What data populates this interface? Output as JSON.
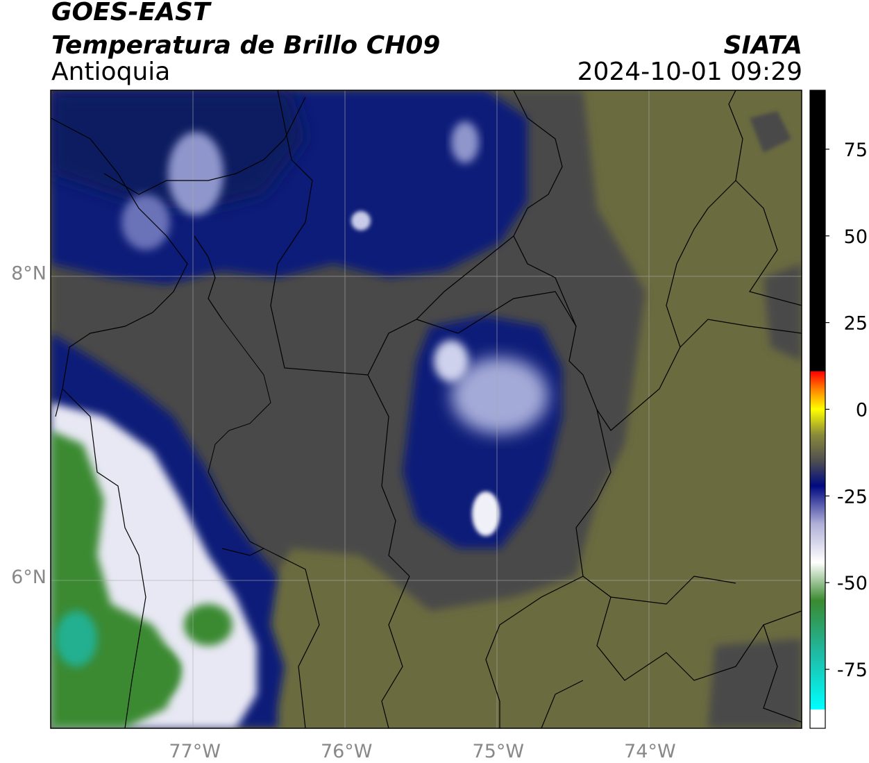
{
  "header": {
    "line1": "GOES-EAST",
    "line2": "Temperatura de Brillo CH09",
    "line3": "Antioquia",
    "brand": "SIATA",
    "datetime": "2024-10-01 09:29"
  },
  "map": {
    "lon_ticks": [
      {
        "value": -77,
        "label": "77°W"
      },
      {
        "value": -76,
        "label": "76°W"
      },
      {
        "value": -75,
        "label": "75°W"
      },
      {
        "value": -74,
        "label": "74°W"
      }
    ],
    "lat_ticks": [
      {
        "value": 8,
        "label": "8°N"
      },
      {
        "value": 6,
        "label": "6°N"
      }
    ],
    "lon_range": [
      -77.95,
      -73.0
    ],
    "lat_range": [
      5.0,
      9.2
    ],
    "colors": {
      "warm_surface": "#6b6b40",
      "mid_cloud": "#4a4a4a",
      "cold_cloud": "#0b1a78",
      "very_cold": "#e8e8f4",
      "green_cold": "#3a8a30",
      "border": "#000000",
      "grid": "#aaaaaa"
    }
  },
  "colorbar": {
    "range": [
      -92,
      92
    ],
    "ticks": [
      {
        "value": 75,
        "label": "75"
      },
      {
        "value": 50,
        "label": "50"
      },
      {
        "value": 25,
        "label": "25"
      },
      {
        "value": 0,
        "label": "0"
      },
      {
        "value": -25,
        "label": "-25"
      },
      {
        "value": -50,
        "label": "-50"
      },
      {
        "value": -75,
        "label": "-75"
      }
    ]
  }
}
